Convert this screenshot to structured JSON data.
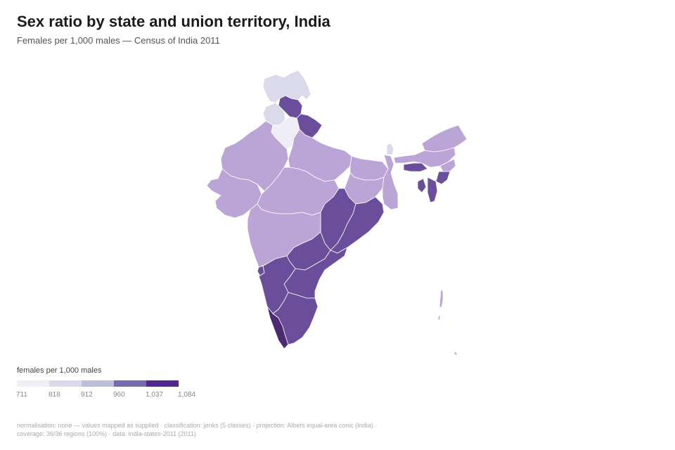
{
  "header": {
    "title": "Sex ratio by state and union territory, India",
    "subtitle": "Females per 1,000 males — Census of India 2011"
  },
  "legend": {
    "title": "females per 1,000 males",
    "breaks": [
      "711",
      "818",
      "912",
      "960",
      "1,037",
      "1,084"
    ],
    "colors": [
      "#efedf5",
      "#dadaeb",
      "#bcbddc",
      "#756bb1",
      "#54278f"
    ]
  },
  "map_colors": {
    "class1": "#efedf5",
    "class2": "#dadaeb",
    "class3": "#bba5d6",
    "class4": "#6a4e9c",
    "class5": "#4b2a72",
    "border": "#ffffff"
  },
  "footer": {
    "line1": "normalisation: none — values mapped as supplied · classification: jenks (5 classes) · projection: Albers equal-area conic (India) ·",
    "line2": "coverage: 36/36 regions (100%) · data: india-states-2011 (2011)"
  }
}
